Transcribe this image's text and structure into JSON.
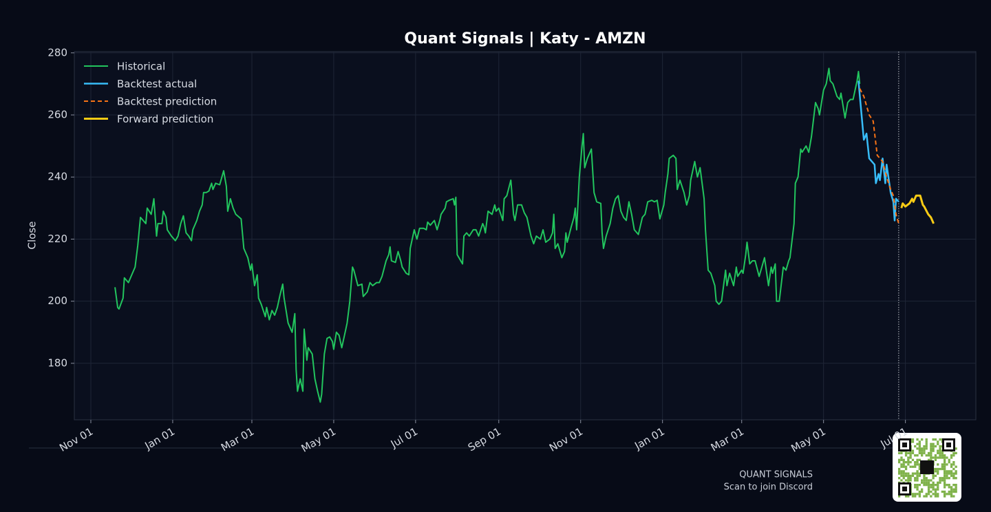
{
  "chart_data": {
    "type": "line",
    "title": "Quant Signals | Katy - AMZN",
    "ylabel": "Close",
    "xlim": [
      -12.3,
      659.5
    ],
    "ylim": [
      161.8,
      280.4
    ],
    "yticks": [
      180,
      200,
      220,
      240,
      260,
      280
    ],
    "xticks": [
      {
        "value": 0,
        "label": "Nov 01"
      },
      {
        "value": 61,
        "label": "Jan 01"
      },
      {
        "value": 120,
        "label": "Mar 01"
      },
      {
        "value": 181,
        "label": "May 01"
      },
      {
        "value": 242,
        "label": "Jul 01"
      },
      {
        "value": 304,
        "label": "Sep 01"
      },
      {
        "value": 365,
        "label": "Nov 01"
      },
      {
        "value": 426,
        "label": "Jan 01"
      },
      {
        "value": 485,
        "label": "Mar 01"
      },
      {
        "value": 546,
        "label": "May 01"
      },
      {
        "value": 607,
        "label": "Jul 01"
      }
    ],
    "grid": true,
    "legend": "upper left",
    "vline_x": 602,
    "series": [
      {
        "name": "Historical",
        "color": "#22c55e",
        "linestyle": "solid",
        "linewidth": 2,
        "x": [
          18,
          20,
          21,
          24,
          25,
          28,
          31,
          33,
          35,
          37,
          39,
          41,
          42,
          45,
          47,
          49,
          50,
          53,
          54,
          56,
          57,
          60,
          63,
          65,
          67,
          69,
          71,
          73,
          75,
          76,
          79,
          81,
          83,
          84,
          86,
          88,
          90,
          91,
          93,
          96,
          99,
          101,
          102,
          104,
          106,
          108,
          112,
          114,
          117,
          119,
          120,
          122,
          124,
          125,
          127,
          130,
          131,
          133,
          135,
          137,
          139,
          141,
          143,
          144,
          147,
          149,
          150,
          152,
          153,
          154,
          156,
          158,
          159,
          161,
          162,
          165,
          167,
          169,
          171,
          172,
          174,
          176,
          178,
          180,
          181,
          183,
          185,
          187,
          190,
          191,
          193,
          195,
          196,
          199,
          202,
          203,
          206,
          208,
          210,
          213,
          215,
          217,
          220,
          222,
          223,
          224,
          227,
          229,
          231,
          232,
          235,
          237,
          238,
          241,
          243,
          245,
          248,
          250,
          251,
          253,
          256,
          258,
          260,
          261,
          264,
          265,
          267,
          270,
          271,
          272,
          273,
          277,
          278,
          280,
          282,
          285,
          287,
          289,
          292,
          293,
          294,
          296,
          299,
          301,
          302,
          304,
          307,
          308,
          310,
          313,
          315,
          316,
          318,
          321,
          323,
          325,
          328,
          330,
          332,
          335,
          337,
          339,
          342,
          344,
          345,
          346,
          348,
          351,
          353,
          354,
          355,
          358,
          360,
          361,
          362,
          364,
          366,
          367,
          368,
          370,
          373,
          375,
          377,
          380,
          381,
          382,
          384,
          387,
          389,
          391,
          393,
          395,
          397,
          399,
          401,
          403,
          405,
          407,
          408,
          411,
          413,
          415,
          418,
          420,
          422,
          424,
          427,
          428,
          430,
          431,
          434,
          436,
          437,
          439,
          442,
          444,
          446,
          447,
          450,
          452,
          454,
          457,
          458,
          460,
          462,
          465,
          466,
          468,
          470,
          473,
          474,
          476,
          479,
          481,
          482,
          485,
          486,
          488,
          489,
          491,
          493,
          495,
          498,
          500,
          502,
          505,
          507,
          508,
          510,
          511,
          513,
          516,
          518,
          520,
          521,
          524,
          525,
          527,
          529,
          530,
          533,
          535,
          537,
          540,
          542,
          543,
          546,
          548,
          550,
          551,
          553,
          556,
          558,
          559,
          562,
          564,
          566,
          568,
          571,
          572,
          573
        ],
        "values": [
          204.5,
          198,
          197.5,
          201,
          207.5,
          206,
          209,
          211,
          218,
          227,
          226,
          225,
          230,
          228,
          233,
          221,
          225,
          225,
          229,
          227,
          223,
          221,
          219.5,
          221,
          225,
          227.5,
          222,
          221,
          219.5,
          223,
          226,
          229,
          231,
          235,
          235,
          235.5,
          238,
          236,
          238,
          237.5,
          242,
          237,
          229,
          233,
          230,
          228,
          226.5,
          217,
          214,
          210,
          212,
          205,
          208.5,
          201,
          199,
          195,
          198,
          194,
          197,
          195.5,
          198,
          202,
          205.5,
          201,
          193,
          191,
          190,
          196,
          178,
          171,
          175,
          171,
          191,
          181,
          185,
          183,
          175,
          171,
          167.5,
          170,
          183,
          188,
          188.5,
          187,
          184.5,
          190,
          189,
          185,
          191,
          193,
          200,
          211,
          210,
          205,
          205.5,
          201.5,
          203,
          206,
          205,
          206,
          206,
          208,
          213,
          215,
          217.5,
          213,
          212.5,
          216,
          213,
          211,
          209,
          208.5,
          217,
          223,
          220,
          223.5,
          223.5,
          223,
          225.5,
          224.5,
          226,
          223,
          226,
          228,
          230,
          232,
          232.5,
          233,
          231,
          233.5,
          215,
          212,
          221,
          222,
          221,
          223,
          223,
          221,
          225,
          224,
          222,
          229,
          228,
          231,
          229,
          230,
          226,
          233,
          234,
          239,
          228,
          226,
          231,
          231,
          228.5,
          227,
          221,
          218.5,
          221,
          220,
          223,
          219,
          220,
          222,
          228,
          217,
          218.5,
          214,
          216,
          222,
          219,
          224,
          227,
          230,
          223,
          240,
          250,
          254,
          243,
          246,
          249,
          235,
          232,
          231.5,
          222,
          217,
          221,
          225,
          230,
          233,
          234,
          229,
          227,
          226,
          232,
          228,
          223,
          222,
          221.5,
          227,
          228,
          232,
          232.5,
          232,
          232.5,
          226.5,
          231,
          235,
          241,
          246,
          247,
          246,
          236,
          239,
          235,
          231,
          234,
          239,
          245,
          240,
          243,
          233,
          223,
          210,
          209,
          205,
          200,
          199,
          200,
          210,
          205,
          209,
          205,
          211,
          208,
          210,
          209,
          215,
          219,
          212,
          213,
          213,
          208,
          211,
          214,
          205,
          211,
          209,
          212,
          200,
          200,
          211,
          210,
          213,
          214,
          225,
          238,
          240,
          249,
          248,
          250,
          248,
          253,
          264,
          262,
          260,
          268,
          270,
          275,
          271,
          270,
          266,
          265,
          267,
          259,
          264,
          265,
          265,
          271,
          274,
          270
        ]
      },
      {
        "name": "Backtest actual",
        "color": "#38bdf8",
        "linestyle": "solid",
        "linewidth": 2.5,
        "x": [
          572,
          576,
          578,
          580,
          584,
          585,
          587,
          588,
          590,
          592,
          593,
          596,
          598,
          599,
          600,
          602
        ],
        "values": [
          271,
          252,
          254,
          246,
          244,
          238,
          241,
          239,
          246,
          238,
          244,
          235,
          232,
          226,
          233,
          232
        ]
      },
      {
        "name": "Backtest prediction",
        "color": "#f97316",
        "linestyle": "dashed",
        "linewidth": 2,
        "x": [
          573,
          576,
          580,
          583,
          586,
          590,
          593,
          596,
          598,
          600,
          602
        ],
        "values": [
          268.5,
          266,
          260,
          258,
          247,
          245,
          240,
          236,
          234,
          228,
          225
        ]
      },
      {
        "name": "Forward prediction",
        "color": "#facc15",
        "linestyle": "solid",
        "linewidth": 3,
        "x": [
          604,
          605,
          607,
          610,
          612,
          613,
          615,
          618,
          620,
          621,
          624,
          626,
          628
        ],
        "values": [
          230,
          231.5,
          230.5,
          231.5,
          233,
          232,
          234,
          234,
          231,
          230.5,
          228,
          227,
          225
        ]
      }
    ]
  },
  "footer": {
    "brand": "QUANT SIGNALS",
    "cta": "Scan to join Discord"
  }
}
